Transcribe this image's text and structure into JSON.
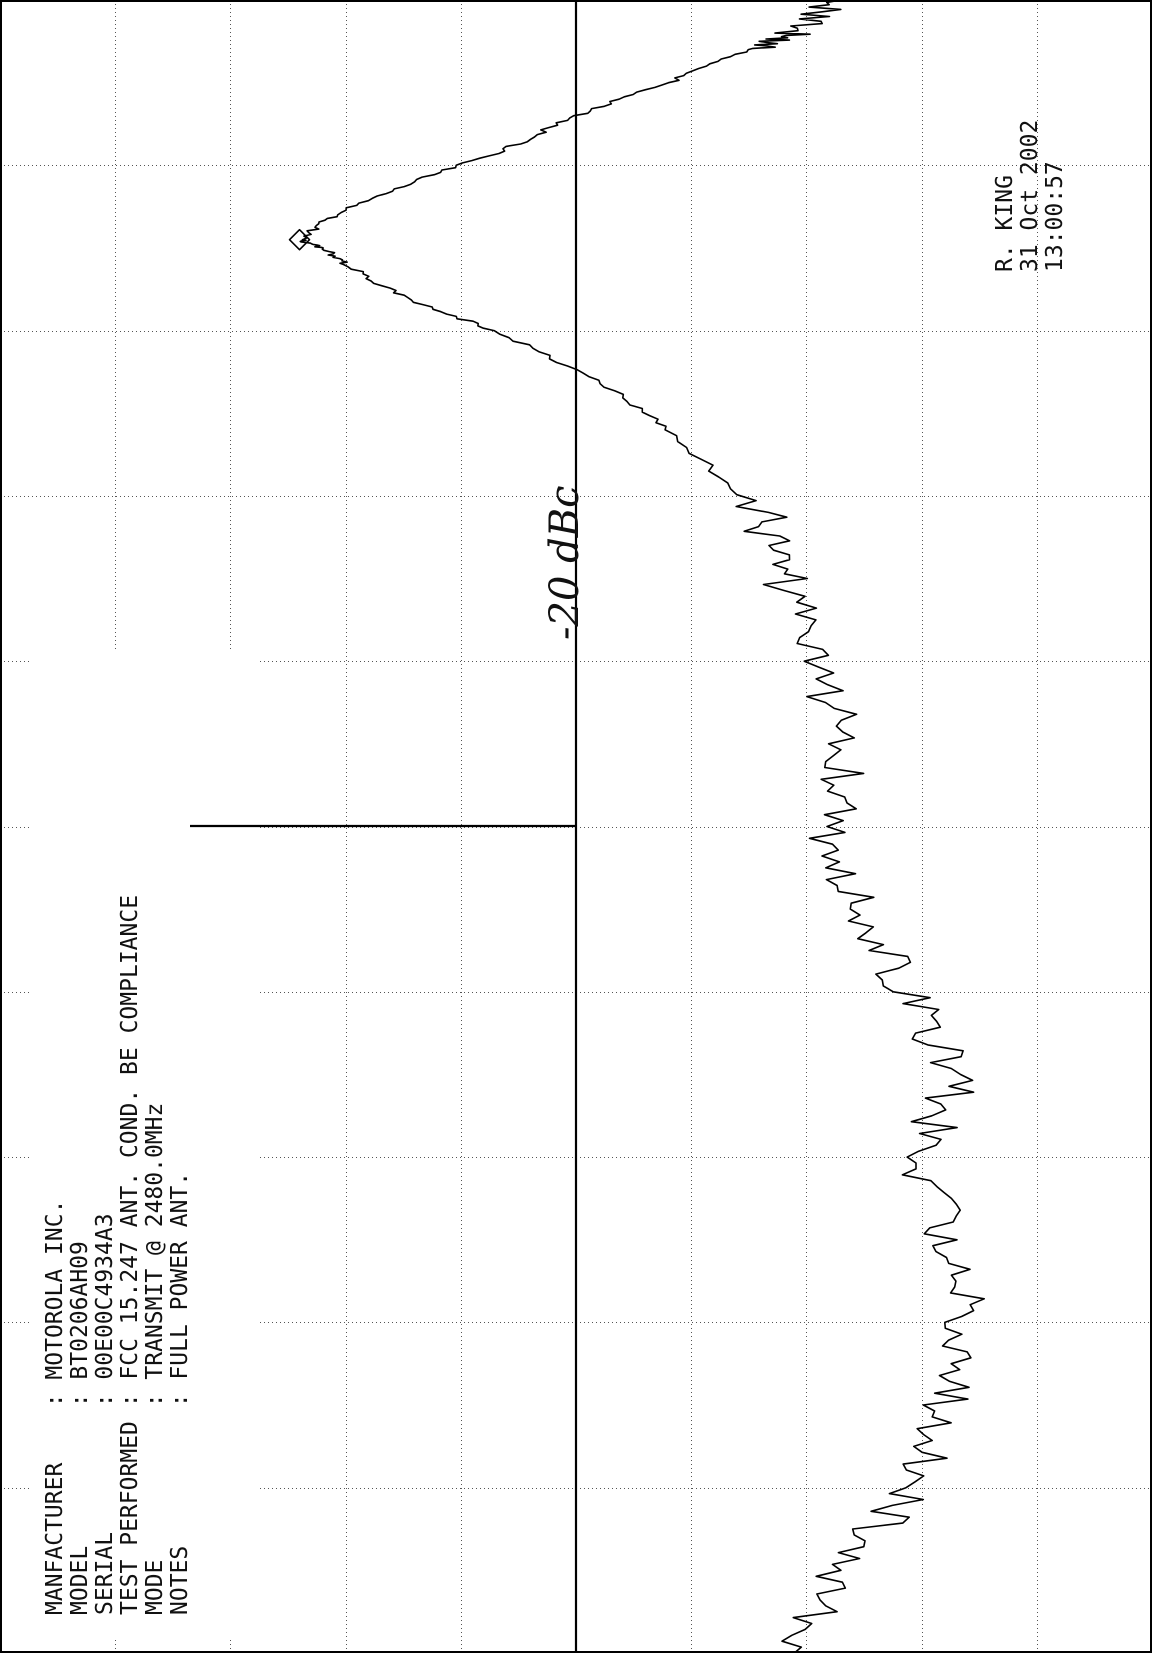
{
  "header": {
    "rows": [
      {
        "label": "MANFACTURER",
        "sep": ":",
        "value": "MOTOROLA INC."
      },
      {
        "label": "MODEL",
        "sep": ":",
        "value": "BT0206AH09"
      },
      {
        "label": "SERIAL",
        "sep": ":",
        "value": "00E00C4934A3"
      },
      {
        "label": "TEST PERFORMED",
        "sep": ":",
        "value": "FCC 15.247 ANT. COND. BE COMPLIANCE"
      },
      {
        "label": "MODE",
        "sep": ":",
        "value": "TRANSMIT @ 2480.0MHz"
      },
      {
        "label": "NOTES",
        "sep": ":",
        "value": "FULL POWER ANT."
      }
    ],
    "operator": "R. KING",
    "date": "31 Oct 2002",
    "time": "13:00:57"
  },
  "annotation": {
    "handwritten": "-20 dBc"
  },
  "chart_data": {
    "type": "line",
    "title": "",
    "xlabel": "",
    "ylabel": "",
    "grid": true,
    "grid_divisions": {
      "x": 10,
      "y": 10
    },
    "xlim": [
      0,
      10
    ],
    "ylim": [
      0,
      10
    ],
    "orientation": "rotated 90 degrees (x runs bottom-to-top, y runs left-to-right)",
    "reference_line": {
      "label": "-20 dBc",
      "y": 5.0
    },
    "marker": {
      "shape": "diamond",
      "x": 8.55,
      "y": 2.6
    },
    "series": [
      {
        "values": [
          [
            0.0,
            6.9
          ],
          [
            0.5,
            7.3
          ],
          [
            1.0,
            7.9
          ],
          [
            1.5,
            8.2
          ],
          [
            2.0,
            8.4
          ],
          [
            2.5,
            8.2
          ],
          [
            3.0,
            8.0
          ],
          [
            3.5,
            8.3
          ],
          [
            4.0,
            7.9
          ],
          [
            4.5,
            7.5
          ],
          [
            5.0,
            7.2
          ],
          [
            5.5,
            7.4
          ],
          [
            6.0,
            7.0
          ],
          [
            6.5,
            6.8
          ],
          [
            6.9,
            6.6
          ],
          [
            7.4,
            5.8
          ],
          [
            7.7,
            5.2
          ],
          [
            8.0,
            4.3
          ],
          [
            8.2,
            3.5
          ],
          [
            8.4,
            3.0
          ],
          [
            8.5,
            2.8
          ],
          [
            8.55,
            2.6
          ],
          [
            8.7,
            2.9
          ],
          [
            8.9,
            3.6
          ],
          [
            9.1,
            4.4
          ],
          [
            9.3,
            5.0
          ],
          [
            9.5,
            5.8
          ],
          [
            9.7,
            6.5
          ],
          [
            9.8,
            6.9
          ],
          [
            10.0,
            7.3
          ]
        ]
      }
    ]
  }
}
